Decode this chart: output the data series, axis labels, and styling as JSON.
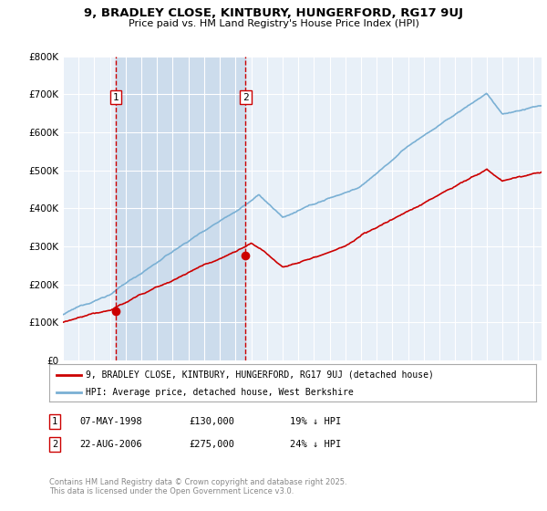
{
  "title": "9, BRADLEY CLOSE, KINTBURY, HUNGERFORD, RG17 9UJ",
  "subtitle": "Price paid vs. HM Land Registry's House Price Index (HPI)",
  "legend_label_red": "9, BRADLEY CLOSE, KINTBURY, HUNGERFORD, RG17 9UJ (detached house)",
  "legend_label_blue": "HPI: Average price, detached house, West Berkshire",
  "annotation1_date": "07-MAY-1998",
  "annotation1_price": "£130,000",
  "annotation1_hpi": "19% ↓ HPI",
  "annotation2_date": "22-AUG-2006",
  "annotation2_price": "£275,000",
  "annotation2_hpi": "24% ↓ HPI",
  "footer": "Contains HM Land Registry data © Crown copyright and database right 2025.\nThis data is licensed under the Open Government Licence v3.0.",
  "ylim": [
    0,
    800000
  ],
  "yticks": [
    0,
    100000,
    200000,
    300000,
    400000,
    500000,
    600000,
    700000,
    800000
  ],
  "ytick_labels": [
    "£0",
    "£100K",
    "£200K",
    "£300K",
    "£400K",
    "£500K",
    "£600K",
    "£700K",
    "£800K"
  ],
  "color_red": "#cc0000",
  "color_blue": "#7ab0d4",
  "background_plot": "#e8f0f8",
  "background_fig": "#ffffff",
  "grid_color": "#ffffff",
  "vline_color": "#cc0000",
  "shade_color": "#ccdcec",
  "marker1_x": 1998.35,
  "marker1_y": 130000,
  "marker2_x": 2006.64,
  "marker2_y": 275000,
  "sale1_year": 1998.35,
  "sale2_year": 2006.64,
  "xlim_left": 1995,
  "xlim_right": 2025.5
}
